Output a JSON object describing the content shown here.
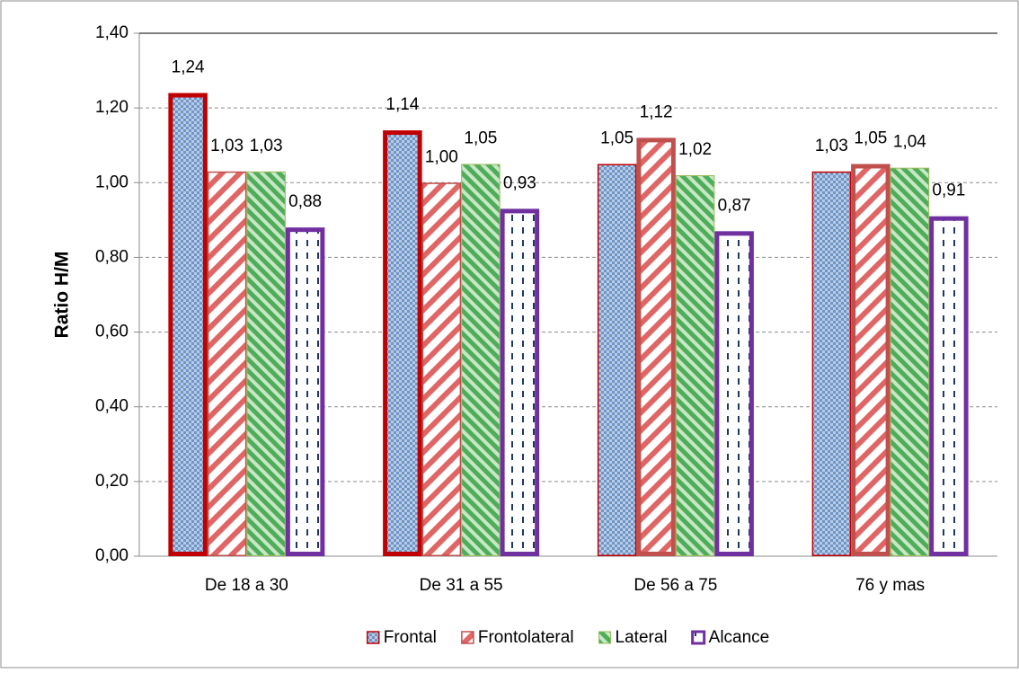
{
  "chart_data": {
    "type": "bar",
    "y_axis_label": "Ratio H/M",
    "categories": [
      "De 18 a 30",
      "De 31 a 55",
      "De 56 a 75",
      "76 y mas"
    ],
    "series": [
      {
        "name": "Frontal",
        "color": "#95b3d7",
        "pattern": "pat-frontal",
        "border_color": "#c00000",
        "border_width": 1.5,
        "values": [
          1.24,
          1.14,
          1.05,
          1.03
        ],
        "value_labels": [
          "1,24",
          "1,14",
          "1,05",
          "1,03"
        ]
      },
      {
        "name": "Frontolateral",
        "color": "#e06666",
        "pattern": "pat-frontolateral",
        "border_color": "#c0504d",
        "border_width": 1.5,
        "values": [
          1.03,
          1.0,
          1.12,
          1.05
        ],
        "value_labels": [
          "1,03",
          "1,00",
          "1,12",
          "1,05"
        ]
      },
      {
        "name": "Lateral",
        "color": "#4ead5b",
        "pattern": "pat-lateral",
        "border_color": "#9bbb59",
        "border_width": 1,
        "values": [
          1.03,
          1.05,
          1.02,
          1.04
        ],
        "value_labels": [
          "1,03",
          "1,05",
          "1,02",
          "1,04"
        ]
      },
      {
        "name": "Alcance",
        "color": "#1f3864",
        "pattern": "pat-alcance",
        "border_color": "#7030a0",
        "border_width": 5,
        "values": [
          0.88,
          0.93,
          0.87,
          0.91
        ],
        "value_labels": [
          "0,88",
          "0,93",
          "0,87",
          "0,91"
        ]
      }
    ],
    "ylim": [
      0,
      1.4
    ],
    "yticks": [
      {
        "value": 0,
        "label": "0,00"
      },
      {
        "value": 0.2,
        "label": "0,20"
      },
      {
        "value": 0.4,
        "label": "0,40"
      },
      {
        "value": 0.6,
        "label": "0,60"
      },
      {
        "value": 0.8,
        "label": "0,80"
      },
      {
        "value": 1.0,
        "label": "1,00"
      },
      {
        "value": 1.2,
        "label": "1,20"
      },
      {
        "value": 1.4,
        "label": "1,40"
      }
    ],
    "grid": true,
    "legend": "bottom"
  }
}
